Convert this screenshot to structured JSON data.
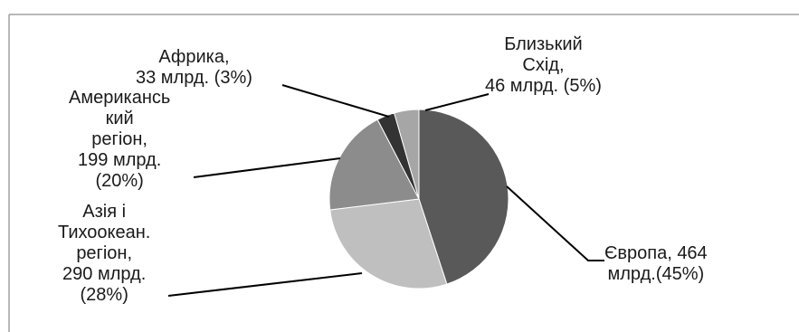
{
  "chart_data": {
    "type": "pie",
    "title": "",
    "categories": [
      "Європа",
      "Азія і Тихоокеан. регіон",
      "Американський регіон",
      "Африка",
      "Близький Схід"
    ],
    "values": [
      464,
      290,
      199,
      33,
      46
    ],
    "percents": [
      45,
      28,
      20,
      3,
      5
    ],
    "colors": [
      "#595959",
      "#bfbfbf",
      "#8c8c8c",
      "#333333",
      "#a6a6a6"
    ],
    "start_slice": "Європа",
    "direction": "clockwise",
    "legend": "none",
    "data_labels": [
      {
        "lines": [
          "Європа, 464",
          "млрд.(45%)"
        ]
      },
      {
        "lines": [
          "Азія і",
          "Тихоокеан.",
          "регіон,",
          "290 млрд.",
          "(28%)"
        ]
      },
      {
        "lines": [
          "Американсь",
          "кий",
          "регіон,",
          "199 млрд.",
          "(20%)"
        ]
      },
      {
        "lines": [
          "Африка,",
          "33 млрд. (3%)"
        ]
      },
      {
        "lines": [
          "Близький",
          "Схід,",
          "46 млрд. (5%)"
        ]
      }
    ]
  }
}
